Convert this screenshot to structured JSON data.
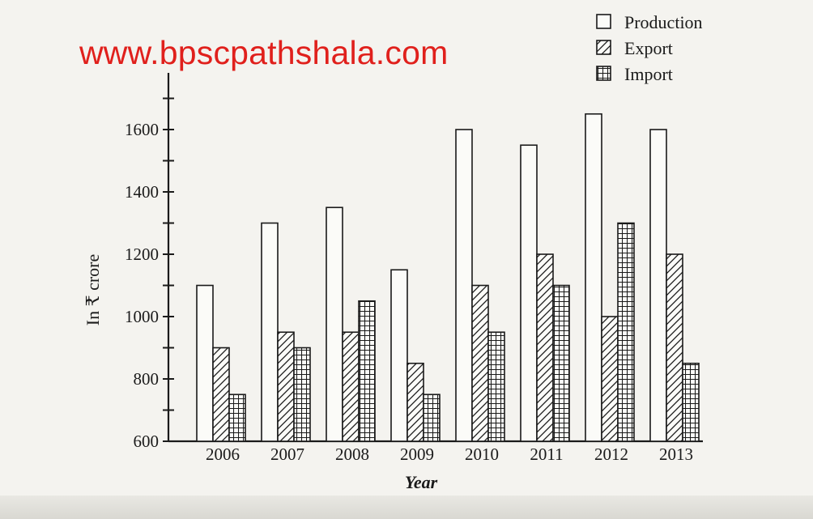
{
  "watermark": "www.bpscpathshala.com",
  "chart_data": {
    "type": "bar",
    "title": "",
    "xlabel": "Year",
    "ylabel": "In ₹ crore",
    "categories": [
      "2006",
      "2007",
      "2008",
      "2009",
      "2010",
      "2011",
      "2012",
      "2013"
    ],
    "series": [
      {
        "name": "Production",
        "pattern": "empty",
        "values": [
          1100,
          1300,
          1350,
          1150,
          1600,
          1550,
          1650,
          1600
        ]
      },
      {
        "name": "Export",
        "pattern": "diagonal-hatch",
        "values": [
          900,
          950,
          950,
          850,
          1100,
          1200,
          1000,
          1200
        ]
      },
      {
        "name": "Import",
        "pattern": "grid-hatch",
        "values": [
          750,
          900,
          1050,
          750,
          950,
          1100,
          1300,
          850
        ]
      }
    ],
    "ylim": [
      600,
      1700
    ],
    "yticks": [
      600,
      800,
      1000,
      1200,
      1400,
      1600
    ],
    "grid": false,
    "legend_position": "top-right",
    "colors": {
      "ink": "#1a1a1a",
      "watermark": "#e0201c",
      "paper": "#f4f3ef"
    }
  }
}
